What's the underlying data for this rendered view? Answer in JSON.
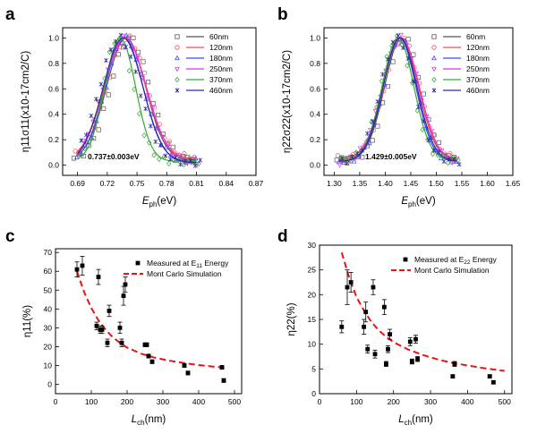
{
  "figure": {
    "panels": [
      "a",
      "b",
      "c",
      "d"
    ]
  },
  "chart_data": [
    {
      "id": "a",
      "type": "line",
      "xlabel": "E",
      "xlabel_sub": "ph",
      "xlabel_unit": "(eV)",
      "ylabel": "η11σ11(x10-17cm2/C)",
      "xlim": [
        0.675,
        0.87
      ],
      "ylim": [
        -0.08,
        1.08
      ],
      "xticks": [
        0.69,
        0.72,
        0.75,
        0.78,
        0.81,
        0.84,
        0.87
      ],
      "xtick_labels": [
        "0.69",
        "0.72",
        "0.75",
        "0.78",
        "0.81",
        "0.84",
        "0.87"
      ],
      "yticks": [
        0.0,
        0.2,
        0.4,
        0.6,
        0.8,
        1.0
      ],
      "ytick_labels": [
        "0.0",
        "0.2",
        "0.4",
        "0.6",
        "0.8",
        "1.0"
      ],
      "annotation": "0.737±0.003eV",
      "series": [
        {
          "name": "60nm",
          "color": "#555555",
          "marker": "square",
          "center": 0.739,
          "sigma": 0.0195,
          "baseline": 0.04
        },
        {
          "name": "120nm",
          "color": "#ff4a4a",
          "marker": "circle",
          "center": 0.738,
          "sigma": 0.0205,
          "baseline": 0.05
        },
        {
          "name": "180nm",
          "color": "#4040ff",
          "marker": "triangle-up",
          "center": 0.737,
          "sigma": 0.019,
          "baseline": 0.03
        },
        {
          "name": "250nm",
          "color": "#e033e0",
          "marker": "triangle-down",
          "center": 0.738,
          "sigma": 0.0215,
          "baseline": 0.02
        },
        {
          "name": "370nm",
          "color": "#33aa33",
          "marker": "diamond",
          "center": 0.733,
          "sigma": 0.0155,
          "baseline": 0.03
        },
        {
          "name": "460nm",
          "color": "#2a2a99",
          "marker": "x-star",
          "center": 0.736,
          "sigma": 0.02,
          "baseline": 0.02
        }
      ],
      "scatter_x": [
        0.69,
        0.695,
        0.7,
        0.705,
        0.71,
        0.715,
        0.72,
        0.725,
        0.73,
        0.735,
        0.74,
        0.745,
        0.75,
        0.755,
        0.76,
        0.765,
        0.77,
        0.775,
        0.78,
        0.785,
        0.79,
        0.795,
        0.8,
        0.805,
        0.81
      ]
    },
    {
      "id": "b",
      "type": "line",
      "xlabel": "E",
      "xlabel_sub": "ph",
      "xlabel_unit": "(eV)",
      "ylabel": "η22σ22(x10-17cm2/C)",
      "xlim": [
        1.28,
        1.65
      ],
      "ylim": [
        -0.08,
        1.08
      ],
      "xticks": [
        1.3,
        1.35,
        1.4,
        1.45,
        1.5,
        1.55,
        1.6,
        1.65
      ],
      "xtick_labels": [
        "1.30",
        "1.35",
        "1.40",
        "1.45",
        "1.50",
        "1.55",
        "1.60",
        "1.65"
      ],
      "yticks": [
        0.0,
        0.2,
        0.4,
        0.6,
        0.8,
        1.0
      ],
      "ytick_labels": [
        "0.0",
        "0.2",
        "0.4",
        "0.6",
        "0.8",
        "1.0"
      ],
      "annotation": "1.429±0.005eV",
      "series": [
        {
          "name": "60nm",
          "color": "#555555",
          "marker": "square",
          "center": 1.432,
          "sigma": 0.033,
          "baseline": 0.04
        },
        {
          "name": "120nm",
          "color": "#ff4a4a",
          "marker": "circle",
          "center": 1.43,
          "sigma": 0.034,
          "baseline": 0.05
        },
        {
          "name": "180nm",
          "color": "#4040ff",
          "marker": "triangle-up",
          "center": 1.428,
          "sigma": 0.032,
          "baseline": 0.03
        },
        {
          "name": "250nm",
          "color": "#e033e0",
          "marker": "triangle-down",
          "center": 1.431,
          "sigma": 0.036,
          "baseline": 0.02
        },
        {
          "name": "370nm",
          "color": "#33aa33",
          "marker": "diamond",
          "center": 1.425,
          "sigma": 0.031,
          "baseline": 0.04
        },
        {
          "name": "460nm",
          "color": "#2a2a99",
          "marker": "x-star",
          "center": 1.429,
          "sigma": 0.033,
          "baseline": 0.03
        }
      ],
      "scatter_x": [
        1.31,
        1.32,
        1.33,
        1.34,
        1.35,
        1.36,
        1.37,
        1.38,
        1.39,
        1.4,
        1.41,
        1.42,
        1.43,
        1.44,
        1.45,
        1.46,
        1.47,
        1.48,
        1.49,
        1.5,
        1.51,
        1.52,
        1.53,
        1.54
      ]
    },
    {
      "id": "c",
      "type": "scatter",
      "xlabel": "L",
      "xlabel_sub": "ch",
      "xlabel_unit": "(nm)",
      "ylabel": "η11(%)",
      "xlim": [
        0,
        520
      ],
      "ylim": [
        -5,
        72
      ],
      "xticks": [
        0,
        100,
        200,
        300,
        400,
        500
      ],
      "xtick_labels": [
        "0",
        "100",
        "200",
        "300",
        "400",
        "500"
      ],
      "yticks": [
        0,
        10,
        20,
        30,
        40,
        50,
        60,
        70
      ],
      "ytick_labels": [
        "0",
        "10",
        "20",
        "30",
        "40",
        "50",
        "60",
        "70"
      ],
      "legend": {
        "measured": "Measured at E",
        "measured_sub": "11",
        "measured_tail": " Energy",
        "sim": "Mont Carlo Simulation"
      },
      "points": {
        "x": [
          60,
          75,
          115,
          120,
          125,
          130,
          145,
          150,
          180,
          185,
          190,
          195,
          250,
          255,
          260,
          270,
          360,
          370,
          465,
          470
        ],
        "y": [
          61,
          63,
          31,
          57,
          29,
          29,
          22,
          39,
          30,
          22,
          47,
          53,
          21,
          21,
          15,
          12,
          10,
          6,
          9,
          2
        ],
        "err": [
          4,
          5,
          2,
          4,
          2,
          2,
          2,
          3,
          3,
          2,
          5,
          4,
          1,
          1,
          1,
          1,
          1,
          1,
          1,
          1
        ]
      },
      "simulation": {
        "x": [
          60,
          80,
          100,
          120,
          140,
          160,
          180,
          200,
          240,
          280,
          320,
          360,
          400,
          440,
          480
        ],
        "y": [
          60,
          49,
          40.5,
          34,
          29,
          25,
          22,
          19.5,
          16.2,
          14,
          12.5,
          11.2,
          10.2,
          9.4,
          8.6
        ],
        "color": "#ee1111"
      }
    },
    {
      "id": "d",
      "type": "scatter",
      "xlabel": "L",
      "xlabel_sub": "ch",
      "xlabel_unit": "(nm)",
      "ylabel": "η22(%)",
      "xlim": [
        0,
        520
      ],
      "ylim": [
        0,
        30
      ],
      "xticks": [
        0,
        100,
        200,
        300,
        400,
        500
      ],
      "xtick_labels": [
        "0",
        "100",
        "200",
        "300",
        "400",
        "500"
      ],
      "yticks": [
        0,
        5,
        10,
        15,
        20,
        25,
        30
      ],
      "ytick_labels": [
        "0",
        "5",
        "10",
        "15",
        "20",
        "25",
        "30"
      ],
      "legend": {
        "measured": "Measured at E",
        "measured_sub": "22",
        "measured_tail": " Energy",
        "sim": "Mont Carlo Simulation"
      },
      "points": {
        "x": [
          60,
          75,
          85,
          120,
          125,
          130,
          145,
          150,
          175,
          180,
          185,
          190,
          245,
          250,
          260,
          265,
          360,
          365,
          460,
          470
        ],
        "y": [
          13.5,
          21.5,
          22.5,
          13.5,
          16.5,
          9.0,
          21.5,
          8.0,
          17.5,
          6.0,
          9.0,
          12.0,
          10.5,
          6.5,
          11.0,
          7.0,
          3.5,
          6.0,
          3.5,
          2.3
        ],
        "err": [
          1.2,
          3.5,
          2.0,
          1.5,
          2.0,
          0.8,
          1.5,
          0.8,
          1.5,
          0.5,
          0.7,
          1.0,
          0.8,
          0.5,
          0.8,
          0.5,
          0.3,
          0.5,
          0.3,
          0.3
        ]
      },
      "simulation": {
        "x": [
          60,
          80,
          100,
          120,
          140,
          160,
          180,
          200,
          240,
          280,
          320,
          360,
          400,
          440,
          480,
          500
        ],
        "y": [
          28.5,
          23.5,
          19.5,
          16.8,
          14.5,
          12.8,
          11.5,
          10.4,
          8.9,
          7.8,
          6.9,
          6.2,
          5.7,
          5.2,
          4.8,
          4.6
        ],
        "color": "#ee1111"
      }
    }
  ]
}
